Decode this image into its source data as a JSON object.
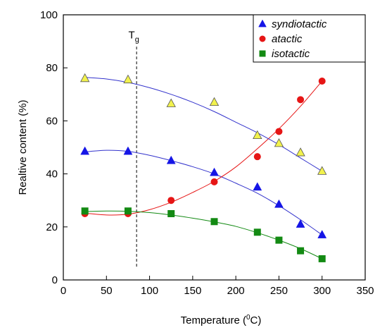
{
  "chart_data": {
    "type": "scatter",
    "xlabel": "Temperature (",
    "xlabel_sup": "0",
    "xlabel_unit": "C)",
    "ylabel": "Realtive content (%)",
    "xlim": [
      0,
      350
    ],
    "ylim": [
      0,
      100
    ],
    "xticks": [
      0,
      50,
      100,
      150,
      200,
      250,
      300,
      350
    ],
    "yticks": [
      0,
      20,
      40,
      60,
      80,
      100
    ],
    "grid": false,
    "legend_position": "top-right",
    "annotation": {
      "text": "T",
      "sub": "g",
      "x": 85
    },
    "series": [
      {
        "name": "syndiotactic",
        "marker": "triangle",
        "color": "#1515e6",
        "x": [
          25,
          75,
          125,
          175,
          225,
          250,
          275,
          300
        ],
        "y": [
          48.5,
          48.5,
          45,
          40.5,
          35,
          28.5,
          21,
          17
        ],
        "fit": [
          [
            25,
            48.3
          ],
          [
            50,
            48.9
          ],
          [
            75,
            48.5
          ],
          [
            100,
            47
          ],
          [
            125,
            45
          ],
          [
            150,
            42.7
          ],
          [
            175,
            40
          ],
          [
            200,
            36.5
          ],
          [
            225,
            32.7
          ],
          [
            250,
            28
          ],
          [
            275,
            22.7
          ],
          [
            300,
            17
          ]
        ]
      },
      {
        "name": "atactic",
        "marker": "circle",
        "color": "#e61515",
        "x": [
          25,
          75,
          125,
          175,
          225,
          250,
          275,
          300
        ],
        "y": [
          25,
          25,
          30,
          37,
          46.5,
          56,
          68,
          75
        ],
        "fit": [
          [
            25,
            25.2
          ],
          [
            50,
            24.5
          ],
          [
            75,
            24.8
          ],
          [
            100,
            26.5
          ],
          [
            125,
            29.3
          ],
          [
            150,
            33
          ],
          [
            175,
            37.2
          ],
          [
            200,
            42.6
          ],
          [
            225,
            49.5
          ],
          [
            250,
            57
          ],
          [
            275,
            65.5
          ],
          [
            300,
            75
          ]
        ]
      },
      {
        "name": "isotactic",
        "marker": "square",
        "color": "#138a13",
        "x": [
          25,
          75,
          125,
          175,
          225,
          250,
          275,
          300
        ],
        "y": [
          26,
          26,
          25,
          22,
          18,
          15,
          11,
          8
        ],
        "fit": [
          [
            25,
            25.8
          ],
          [
            50,
            26
          ],
          [
            75,
            25.9
          ],
          [
            100,
            25.4
          ],
          [
            125,
            24.5
          ],
          [
            150,
            23.3
          ],
          [
            175,
            21.9
          ],
          [
            200,
            20.2
          ],
          [
            225,
            17.8
          ],
          [
            250,
            15
          ],
          [
            275,
            11.8
          ],
          [
            300,
            8
          ]
        ]
      },
      {
        "name": "",
        "marker": "triangle",
        "color": "#f2f24d",
        "x": [
          25,
          75,
          125,
          175,
          225,
          250,
          275,
          300
        ],
        "y": [
          76,
          75.5,
          66.5,
          67,
          54.5,
          51.5,
          48,
          41
        ],
        "fit": [
          [
            25,
            76.4
          ],
          [
            50,
            75.8
          ],
          [
            75,
            74.5
          ],
          [
            100,
            72.5
          ],
          [
            125,
            70
          ],
          [
            150,
            67
          ],
          [
            175,
            63.5
          ],
          [
            200,
            59.5
          ],
          [
            225,
            55.5
          ],
          [
            250,
            51
          ],
          [
            275,
            46
          ],
          [
            300,
            41
          ]
        ]
      }
    ]
  }
}
